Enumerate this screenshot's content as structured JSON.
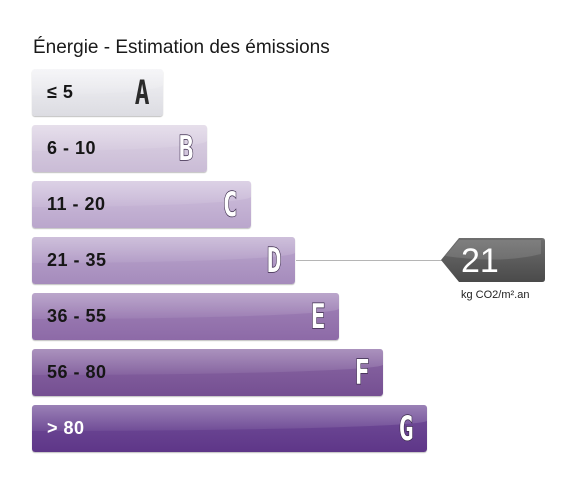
{
  "title": "Énergie - Estimation des émissions",
  "classes": [
    {
      "range": "≤ 5",
      "letter": "A",
      "color": "#e6e6eb"
    },
    {
      "range": "6 - 10",
      "letter": "B",
      "color": "#d3c7dd"
    },
    {
      "range": "11 - 20",
      "letter": "C",
      "color": "#c4b3d4"
    },
    {
      "range": "21 - 35",
      "letter": "D",
      "color": "#b099c5"
    },
    {
      "range": "36 - 55",
      "letter": "E",
      "color": "#9777af"
    },
    {
      "range": "56 - 80",
      "letter": "F",
      "color": "#7f5b9b"
    },
    {
      "range": "> 80",
      "letter": "G",
      "color": "#684391"
    }
  ],
  "indicator": {
    "value": "21",
    "unit": "kg CO2/m².an",
    "active_class": "D",
    "color": "#5a5a5a"
  }
}
